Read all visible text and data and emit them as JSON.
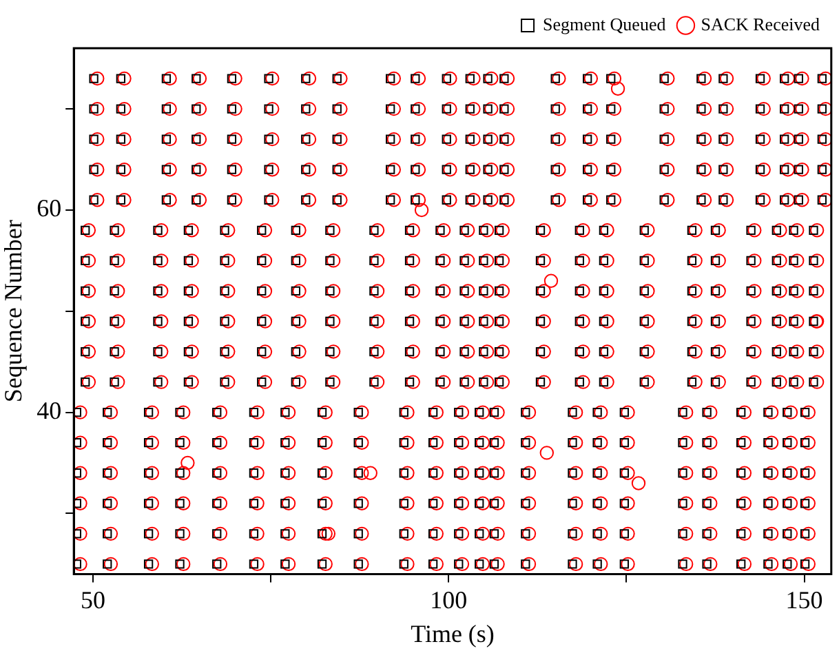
{
  "chart_data": {
    "type": "scatter",
    "xlabel": "Time (s)",
    "ylabel": "Sequence Number",
    "xlim": [
      47.3,
      153.8
    ],
    "ylim": [
      24,
      76
    ],
    "xticks": [
      50,
      {
        "value": 75,
        "label": null
      },
      100,
      {
        "value": 125,
        "label": null
      },
      150
    ],
    "yticks": [
      {
        "value": 30,
        "label": null
      },
      40,
      {
        "value": 50,
        "label": null
      },
      60,
      {
        "value": 70,
        "label": null
      }
    ],
    "grid": false,
    "legend": "top right",
    "series": [
      {
        "name": "Segment Queued",
        "color": "#000000",
        "marker": "square",
        "x": [
          47.7,
          47.7,
          47.7,
          47.7,
          47.7,
          47.7,
          48.9,
          48.9,
          48.9,
          48.9,
          48.9,
          48.9,
          50.1,
          50.1,
          50.1,
          50.1,
          50.1,
          52.0,
          52.0,
          52.0,
          52.0,
          52.0,
          52.0,
          53.0,
          53.0,
          53.0,
          53.0,
          53.0,
          53.0,
          53.9,
          53.9,
          53.9,
          53.9,
          53.9,
          57.8,
          57.8,
          57.8,
          57.8,
          57.8,
          57.8,
          59.1,
          59.1,
          59.1,
          59.1,
          59.1,
          59.1,
          60.3,
          60.3,
          60.3,
          60.3,
          60.3,
          62.2,
          62.2,
          62.2,
          62.2,
          62.2,
          62.2,
          63.4,
          63.4,
          63.4,
          63.4,
          63.4,
          63.4,
          64.5,
          64.5,
          64.5,
          64.5,
          64.5,
          67.4,
          67.4,
          67.4,
          67.4,
          67.4,
          67.4,
          68.5,
          68.5,
          68.5,
          68.5,
          68.5,
          68.5,
          69.5,
          69.5,
          69.5,
          69.5,
          69.5,
          72.6,
          72.6,
          72.6,
          72.6,
          72.6,
          72.6,
          73.7,
          73.7,
          73.7,
          73.7,
          73.7,
          73.7,
          74.7,
          74.7,
          74.7,
          74.7,
          74.7,
          77.0,
          77.0,
          77.0,
          77.0,
          77.0,
          77.0,
          78.5,
          78.5,
          78.5,
          78.5,
          78.5,
          78.5,
          79.9,
          79.9,
          79.9,
          79.9,
          79.9,
          82.2,
          82.2,
          82.2,
          82.2,
          82.2,
          82.2,
          83.3,
          83.3,
          83.3,
          83.3,
          83.3,
          83.3,
          84.3,
          84.3,
          84.3,
          84.3,
          84.3,
          87.3,
          87.3,
          87.3,
          87.3,
          87.3,
          87.3,
          89.5,
          89.5,
          89.5,
          89.5,
          89.5,
          89.5,
          91.8,
          91.8,
          91.8,
          91.8,
          91.8,
          93.7,
          93.7,
          93.7,
          93.7,
          93.7,
          93.7,
          94.5,
          94.5,
          94.5,
          94.5,
          94.5,
          94.5,
          95.3,
          95.3,
          95.3,
          95.3,
          95.3,
          97.8,
          97.8,
          97.8,
          97.8,
          97.8,
          97.8,
          98.8,
          98.8,
          98.8,
          98.8,
          98.8,
          98.8,
          99.7,
          99.7,
          99.7,
          99.7,
          99.7,
          101.4,
          101.4,
          101.4,
          101.4,
          101.4,
          101.4,
          102.2,
          102.2,
          102.2,
          102.2,
          102.2,
          102.2,
          103.0,
          103.0,
          103.0,
          103.0,
          103.0,
          104.3,
          104.3,
          104.3,
          104.3,
          104.3,
          104.3,
          104.9,
          104.9,
          104.9,
          104.9,
          104.9,
          104.9,
          105.5,
          105.5,
          105.5,
          105.5,
          105.5,
          106.4,
          106.4,
          106.4,
          106.4,
          106.4,
          106.4,
          107.1,
          107.1,
          107.1,
          107.1,
          107.1,
          107.1,
          107.8,
          107.8,
          107.8,
          107.8,
          107.8,
          110.8,
          110.8,
          110.8,
          110.8,
          110.8,
          110.8,
          112.9,
          112.9,
          112.9,
          112.9,
          112.9,
          112.9,
          115.0,
          115.0,
          115.0,
          115.0,
          115.0,
          117.4,
          117.4,
          117.4,
          117.4,
          117.4,
          117.4,
          118.4,
          118.4,
          118.4,
          118.4,
          118.4,
          118.4,
          119.5,
          119.5,
          119.5,
          119.5,
          119.5,
          120.9,
          120.9,
          120.9,
          120.9,
          120.9,
          120.9,
          121.8,
          121.8,
          121.8,
          121.8,
          121.8,
          121.8,
          122.8,
          122.8,
          122.8,
          122.8,
          122.8,
          124.7,
          124.7,
          124.7,
          124.7,
          124.7,
          124.7,
          127.5,
          127.5,
          127.5,
          127.5,
          127.5,
          127.5,
          130.3,
          130.3,
          130.3,
          130.3,
          130.3,
          132.9,
          132.9,
          132.9,
          132.9,
          132.9,
          132.9,
          134.2,
          134.2,
          134.2,
          134.2,
          134.2,
          134.2,
          135.5,
          135.5,
          135.5,
          135.5,
          135.5,
          136.3,
          136.3,
          136.3,
          136.3,
          136.3,
          136.3,
          137.5,
          137.5,
          137.5,
          137.5,
          137.5,
          137.5,
          138.6,
          138.6,
          138.6,
          138.6,
          138.6,
          141.1,
          141.1,
          141.1,
          141.1,
          141.1,
          141.1,
          142.5,
          142.5,
          142.5,
          142.5,
          142.5,
          142.5,
          143.8,
          143.8,
          143.8,
          143.8,
          143.8,
          144.9,
          144.9,
          144.9,
          144.9,
          144.9,
          144.9,
          146.1,
          146.1,
          146.1,
          146.1,
          146.1,
          146.1,
          147.2,
          147.2,
          147.2,
          147.2,
          147.2,
          147.6,
          147.6,
          147.6,
          147.6,
          147.6,
          147.6,
          148.5,
          148.5,
          148.5,
          148.5,
          148.5,
          148.5,
          149.2,
          149.2,
          149.2,
          149.2,
          149.2,
          150.1,
          150.1,
          150.1,
          150.1,
          150.1,
          150.1,
          151.3,
          151.3,
          151.3,
          151.3,
          151.3,
          151.3,
          152.5,
          152.5,
          152.5,
          152.5,
          152.5
        ],
        "values": [
          25,
          28,
          31,
          34,
          37,
          40,
          43,
          46,
          49,
          52,
          55,
          58,
          61,
          64,
          67,
          70,
          73,
          25,
          28,
          31,
          34,
          37,
          40,
          43,
          46,
          49,
          52,
          55,
          58,
          61,
          64,
          67,
          70,
          73,
          25,
          28,
          31,
          34,
          37,
          40,
          43,
          46,
          49,
          52,
          55,
          58,
          61,
          64,
          67,
          70,
          73,
          25,
          28,
          31,
          34,
          37,
          40,
          43,
          46,
          49,
          52,
          55,
          58,
          61,
          64,
          67,
          70,
          73,
          25,
          28,
          31,
          34,
          37,
          40,
          43,
          46,
          49,
          52,
          55,
          58,
          61,
          64,
          67,
          70,
          73,
          25,
          28,
          31,
          34,
          37,
          40,
          43,
          46,
          49,
          52,
          55,
          58,
          61,
          64,
          67,
          70,
          73,
          25,
          28,
          31,
          34,
          37,
          40,
          43,
          46,
          49,
          52,
          55,
          58,
          61,
          64,
          67,
          70,
          73,
          25,
          28,
          31,
          34,
          37,
          40,
          43,
          46,
          49,
          52,
          55,
          58,
          61,
          64,
          67,
          70,
          73,
          25,
          28,
          31,
          34,
          37,
          40,
          43,
          46,
          49,
          52,
          55,
          58,
          61,
          64,
          67,
          70,
          73,
          25,
          28,
          31,
          34,
          37,
          40,
          43,
          46,
          49,
          52,
          55,
          58,
          61,
          64,
          67,
          70,
          73,
          25,
          28,
          31,
          34,
          37,
          40,
          43,
          46,
          49,
          52,
          55,
          58,
          61,
          64,
          67,
          70,
          73,
          25,
          28,
          31,
          34,
          37,
          40,
          43,
          46,
          49,
          52,
          55,
          58,
          61,
          64,
          67,
          70,
          73,
          25,
          28,
          31,
          34,
          37,
          40,
          43,
          46,
          49,
          52,
          55,
          58,
          61,
          64,
          67,
          70,
          73,
          25,
          28,
          31,
          34,
          37,
          40,
          43,
          46,
          49,
          52,
          55,
          58,
          61,
          64,
          67,
          70,
          73,
          25,
          28,
          31,
          34,
          37,
          40,
          43,
          46,
          49,
          52,
          55,
          58,
          61,
          64,
          67,
          70,
          73,
          25,
          28,
          31,
          34,
          37,
          40,
          43,
          46,
          49,
          52,
          55,
          58,
          61,
          64,
          67,
          70,
          73,
          25,
          28,
          31,
          34,
          37,
          40,
          43,
          46,
          49,
          52,
          55,
          58,
          61,
          64,
          67,
          70,
          73,
          25,
          28,
          31,
          34,
          37,
          40,
          43,
          46,
          49,
          52,
          55,
          58,
          61,
          64,
          67,
          70,
          73,
          25,
          28,
          31,
          34,
          37,
          40,
          43,
          46,
          49,
          52,
          55,
          58,
          61,
          64,
          67,
          70,
          73,
          25,
          28,
          31,
          34,
          37,
          40,
          43,
          46,
          49,
          52,
          55,
          58,
          61,
          64,
          67,
          70,
          73,
          25,
          28,
          31,
          34,
          37,
          40,
          43,
          46,
          49,
          52,
          55,
          58,
          61,
          64,
          67,
          70,
          73,
          25,
          28,
          31,
          34,
          37,
          40,
          43,
          46,
          49,
          52,
          55,
          58,
          61,
          64,
          67,
          70,
          73,
          25,
          28,
          31,
          34,
          37,
          40,
          43,
          46,
          49,
          52,
          55,
          58,
          61,
          64,
          67,
          70,
          73,
          25,
          28,
          31,
          34,
          37,
          40,
          43,
          46,
          49,
          52,
          55,
          58,
          61,
          64,
          67,
          70,
          73
        ]
      },
      {
        "name": "SACK Received",
        "color": "#ff0000",
        "marker": "circle",
        "x": [
          48.2,
          48.2,
          48.2,
          48.2,
          48.2,
          48.2,
          49.4,
          49.4,
          49.4,
          49.4,
          49.4,
          49.4,
          50.6,
          50.6,
          50.6,
          50.6,
          50.6,
          52.5,
          52.5,
          52.5,
          52.5,
          52.5,
          52.5,
          53.5,
          53.5,
          53.5,
          53.5,
          53.5,
          53.5,
          54.4,
          54.4,
          54.4,
          54.4,
          54.4,
          58.3,
          58.3,
          58.3,
          58.3,
          58.3,
          58.3,
          59.6,
          59.6,
          59.6,
          59.6,
          59.6,
          59.6,
          60.8,
          60.8,
          60.8,
          60.8,
          60.8,
          62.7,
          62.7,
          62.7,
          62.7,
          62.7,
          62.7,
          63.9,
          63.9,
          63.9,
          63.9,
          63.9,
          63.9,
          65.0,
          65.0,
          65.0,
          65.0,
          65.0,
          67.9,
          67.9,
          67.9,
          67.9,
          67.9,
          67.9,
          69.0,
          69.0,
          69.0,
          69.0,
          69.0,
          69.0,
          70.0,
          70.0,
          70.0,
          70.0,
          70.0,
          73.1,
          73.1,
          73.1,
          73.1,
          73.1,
          73.1,
          74.2,
          74.2,
          74.2,
          74.2,
          74.2,
          74.2,
          75.2,
          75.2,
          75.2,
          75.2,
          75.2,
          77.5,
          77.5,
          77.5,
          77.5,
          77.5,
          77.5,
          79.0,
          79.0,
          79.0,
          79.0,
          79.0,
          79.0,
          80.4,
          80.4,
          80.4,
          80.4,
          80.4,
          82.7,
          82.7,
          82.7,
          82.7,
          82.7,
          82.7,
          83.8,
          83.8,
          83.8,
          83.8,
          83.8,
          83.8,
          84.8,
          84.8,
          84.8,
          84.8,
          84.8,
          87.8,
          87.8,
          87.8,
          87.8,
          87.8,
          87.8,
          90.0,
          90.0,
          90.0,
          90.0,
          90.0,
          90.0,
          92.3,
          92.3,
          92.3,
          92.3,
          92.3,
          94.2,
          94.2,
          94.2,
          94.2,
          94.2,
          94.2,
          95.0,
          95.0,
          95.0,
          95.0,
          95.0,
          95.0,
          95.8,
          95.8,
          95.8,
          95.8,
          95.8,
          98.3,
          98.3,
          98.3,
          98.3,
          98.3,
          98.3,
          99.3,
          99.3,
          99.3,
          99.3,
          99.3,
          99.3,
          100.2,
          100.2,
          100.2,
          100.2,
          100.2,
          101.9,
          101.9,
          101.9,
          101.9,
          101.9,
          101.9,
          102.7,
          102.7,
          102.7,
          102.7,
          102.7,
          102.7,
          103.5,
          103.5,
          103.5,
          103.5,
          103.5,
          104.8,
          104.8,
          104.8,
          104.8,
          104.8,
          104.8,
          105.4,
          105.4,
          105.4,
          105.4,
          105.4,
          105.4,
          106.0,
          106.0,
          106.0,
          106.0,
          106.0,
          106.9,
          106.9,
          106.9,
          106.9,
          106.9,
          106.9,
          107.6,
          107.6,
          107.6,
          107.6,
          107.6,
          107.6,
          108.3,
          108.3,
          108.3,
          108.3,
          108.3,
          111.3,
          111.3,
          111.3,
          111.3,
          111.3,
          111.3,
          113.4,
          113.4,
          113.4,
          113.4,
          113.4,
          113.4,
          115.5,
          115.5,
          115.5,
          115.5,
          115.5,
          117.9,
          117.9,
          117.9,
          117.9,
          117.9,
          117.9,
          118.9,
          118.9,
          118.9,
          118.9,
          118.9,
          118.9,
          120.0,
          120.0,
          120.0,
          120.0,
          120.0,
          121.4,
          121.4,
          121.4,
          121.4,
          121.4,
          121.4,
          122.3,
          122.3,
          122.3,
          122.3,
          122.3,
          122.3,
          123.3,
          123.3,
          123.3,
          123.3,
          123.3,
          125.2,
          125.2,
          125.2,
          125.2,
          125.2,
          125.2,
          128.0,
          128.0,
          128.0,
          128.0,
          128.0,
          128.0,
          130.8,
          130.8,
          130.8,
          130.8,
          130.8,
          133.4,
          133.4,
          133.4,
          133.4,
          133.4,
          133.4,
          134.7,
          134.7,
          134.7,
          134.7,
          134.7,
          134.7,
          136.0,
          136.0,
          136.0,
          136.0,
          136.0,
          136.8,
          136.8,
          136.8,
          136.8,
          136.8,
          136.8,
          138.0,
          138.0,
          138.0,
          138.0,
          138.0,
          138.0,
          139.1,
          139.1,
          139.1,
          139.1,
          139.1,
          141.6,
          141.6,
          141.6,
          141.6,
          141.6,
          141.6,
          143.0,
          143.0,
          143.0,
          143.0,
          143.0,
          143.0,
          144.3,
          144.3,
          144.3,
          144.3,
          144.3,
          145.4,
          145.4,
          145.4,
          145.4,
          145.4,
          145.4,
          146.6,
          146.6,
          146.6,
          146.6,
          146.6,
          146.6,
          147.7,
          147.7,
          147.7,
          147.7,
          147.7,
          148.1,
          148.1,
          148.1,
          148.1,
          148.1,
          148.1,
          149.0,
          149.0,
          149.0,
          149.0,
          149.0,
          149.0,
          149.7,
          149.7,
          149.7,
          149.7,
          149.7,
          150.6,
          150.6,
          150.6,
          150.6,
          150.6,
          150.6,
          151.8,
          151.8,
          151.8,
          151.8,
          151.8,
          151.8,
          153.0,
          153.0,
          153.0,
          153.0,
          153.0,
          63.3,
          83.1,
          89.0,
          96.2,
          113.8,
          114.4,
          123.8,
          126.7,
          151.7
        ],
        "values": [
          25,
          28,
          31,
          34,
          37,
          40,
          43,
          46,
          49,
          52,
          55,
          58,
          61,
          64,
          67,
          70,
          73,
          25,
          28,
          31,
          34,
          37,
          40,
          43,
          46,
          49,
          52,
          55,
          58,
          61,
          64,
          67,
          70,
          73,
          25,
          28,
          31,
          34,
          37,
          40,
          43,
          46,
          49,
          52,
          55,
          58,
          61,
          64,
          67,
          70,
          73,
          25,
          28,
          31,
          34,
          37,
          40,
          43,
          46,
          49,
          52,
          55,
          58,
          61,
          64,
          67,
          70,
          73,
          25,
          28,
          31,
          34,
          37,
          40,
          43,
          46,
          49,
          52,
          55,
          58,
          61,
          64,
          67,
          70,
          73,
          25,
          28,
          31,
          34,
          37,
          40,
          43,
          46,
          49,
          52,
          55,
          58,
          61,
          64,
          67,
          70,
          73,
          25,
          28,
          31,
          34,
          37,
          40,
          43,
          46,
          49,
          52,
          55,
          58,
          61,
          64,
          67,
          70,
          73,
          25,
          28,
          31,
          34,
          37,
          40,
          43,
          46,
          49,
          52,
          55,
          58,
          61,
          64,
          67,
          70,
          73,
          25,
          28,
          31,
          34,
          37,
          40,
          43,
          46,
          49,
          52,
          55,
          58,
          61,
          64,
          67,
          70,
          73,
          25,
          28,
          31,
          34,
          37,
          40,
          43,
          46,
          49,
          52,
          55,
          58,
          61,
          64,
          67,
          70,
          73,
          25,
          28,
          31,
          34,
          37,
          40,
          43,
          46,
          49,
          52,
          55,
          58,
          61,
          64,
          67,
          70,
          73,
          25,
          28,
          31,
          34,
          37,
          40,
          43,
          46,
          49,
          52,
          55,
          58,
          61,
          64,
          67,
          70,
          73,
          25,
          28,
          31,
          34,
          37,
          40,
          43,
          46,
          49,
          52,
          55,
          58,
          61,
          64,
          67,
          70,
          73,
          25,
          28,
          31,
          34,
          37,
          40,
          43,
          46,
          49,
          52,
          55,
          58,
          61,
          64,
          67,
          70,
          73,
          25,
          28,
          31,
          34,
          37,
          40,
          43,
          46,
          49,
          52,
          55,
          58,
          61,
          64,
          67,
          70,
          73,
          25,
          28,
          31,
          34,
          37,
          40,
          43,
          46,
          49,
          52,
          55,
          58,
          61,
          64,
          67,
          70,
          73,
          25,
          28,
          31,
          34,
          37,
          40,
          43,
          46,
          49,
          52,
          55,
          58,
          61,
          64,
          67,
          70,
          73,
          25,
          28,
          31,
          34,
          37,
          40,
          43,
          46,
          49,
          52,
          55,
          58,
          61,
          64,
          67,
          70,
          73,
          25,
          28,
          31,
          34,
          37,
          40,
          43,
          46,
          49,
          52,
          55,
          58,
          61,
          64,
          67,
          70,
          73,
          25,
          28,
          31,
          34,
          37,
          40,
          43,
          46,
          49,
          52,
          55,
          58,
          61,
          64,
          67,
          70,
          73,
          25,
          28,
          31,
          34,
          37,
          40,
          43,
          46,
          49,
          52,
          55,
          58,
          61,
          64,
          67,
          70,
          73,
          25,
          28,
          31,
          34,
          37,
          40,
          43,
          46,
          49,
          52,
          55,
          58,
          61,
          64,
          67,
          70,
          73,
          25,
          28,
          31,
          34,
          37,
          40,
          43,
          46,
          49,
          52,
          55,
          58,
          61,
          64,
          67,
          70,
          73,
          25,
          28,
          31,
          34,
          37,
          40,
          43,
          46,
          49,
          52,
          55,
          58,
          61,
          64,
          67,
          70,
          73,
          35,
          28,
          34,
          60,
          36,
          53,
          72,
          33,
          49
        ]
      }
    ]
  }
}
